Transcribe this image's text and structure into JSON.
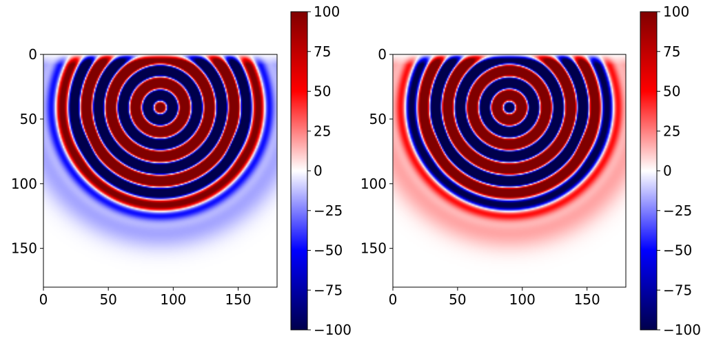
{
  "chart_data": [
    {
      "type": "heatmap",
      "panel": "left",
      "xlim": [
        0,
        180
      ],
      "ylim": [
        180,
        0
      ],
      "x_ticks": [
        "0",
        "50",
        "100",
        "150"
      ],
      "y_ticks": [
        "0",
        "50",
        "100",
        "150"
      ],
      "x_tick_values": [
        0,
        50,
        100,
        150
      ],
      "y_tick_values": [
        0,
        50,
        100,
        150
      ],
      "colormap": "seismic",
      "colorbar": {
        "range": [
          -100,
          100
        ],
        "ticks": [
          "100",
          "75",
          "50",
          "25",
          "0",
          "−25",
          "−50",
          "−75",
          "−100"
        ],
        "tick_values": [
          100,
          75,
          50,
          25,
          0,
          -25,
          -50,
          -75,
          -100
        ]
      },
      "field": {
        "source_x": 90,
        "source_y": 41,
        "wavelength": 19,
        "interface_y": 60,
        "front_radius": 88,
        "center_sign": 1,
        "interface_outer_sign": -1
      }
    },
    {
      "type": "heatmap",
      "panel": "right",
      "xlim": [
        0,
        180
      ],
      "ylim": [
        180,
        0
      ],
      "x_ticks": [
        "0",
        "50",
        "100",
        "150"
      ],
      "y_ticks": [
        "0",
        "50",
        "100",
        "150"
      ],
      "x_tick_values": [
        0,
        50,
        100,
        150
      ],
      "y_tick_values": [
        0,
        50,
        100,
        150
      ],
      "colormap": "seismic",
      "colorbar": {
        "range": [
          -100,
          100
        ],
        "ticks": [
          "100",
          "75",
          "50",
          "25",
          "0",
          "−25",
          "−50",
          "−75",
          "−100"
        ],
        "tick_values": [
          100,
          75,
          50,
          25,
          0,
          -25,
          -50,
          -75,
          -100
        ]
      },
      "field": {
        "source_x": 90,
        "source_y": 41,
        "wavelength": 19,
        "interface_y": 60,
        "front_radius": 88,
        "center_sign": -1,
        "interface_outer_sign": 1
      }
    }
  ]
}
